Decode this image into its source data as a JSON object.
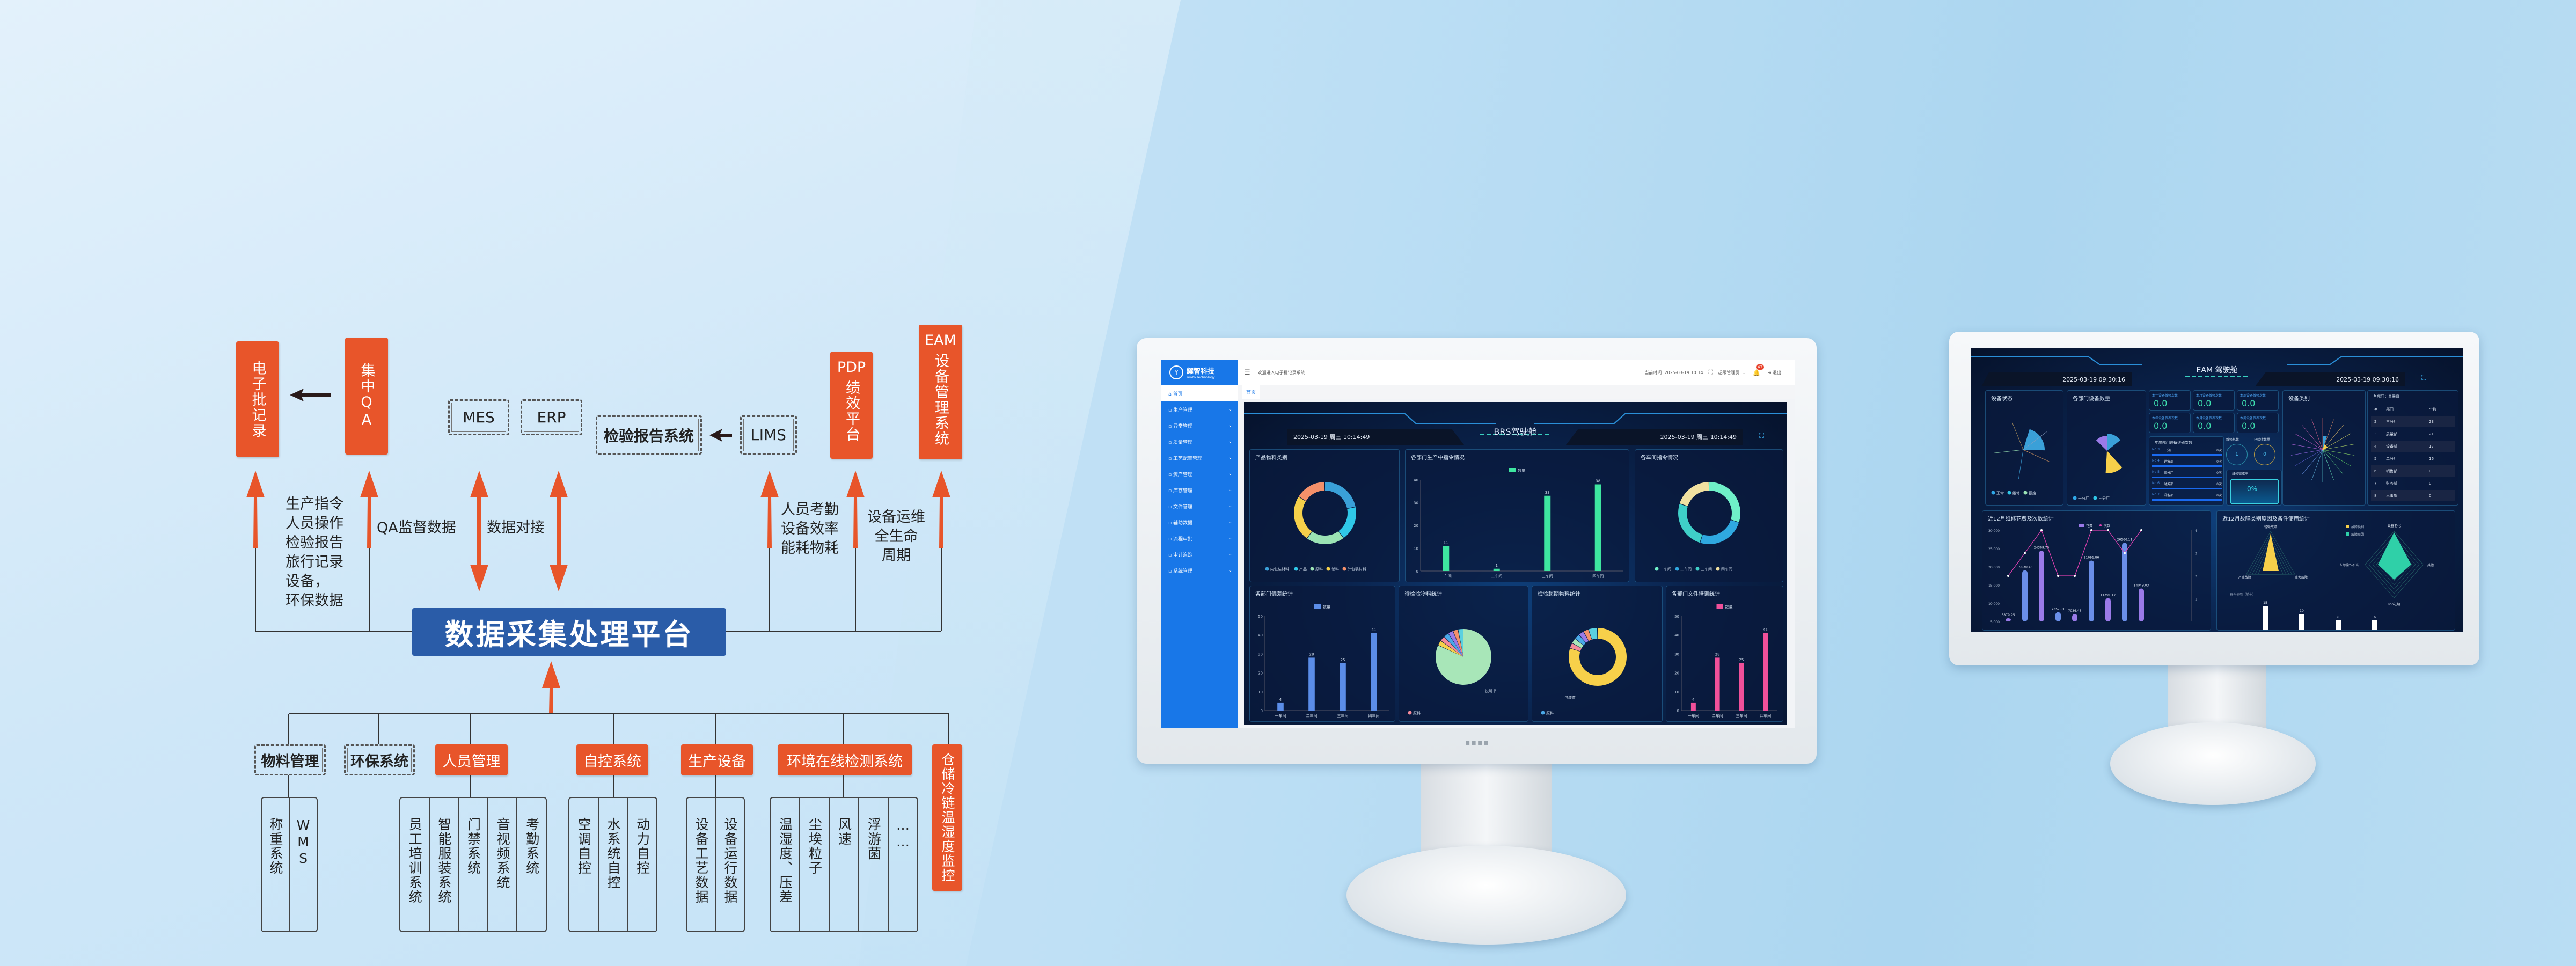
{
  "diagram": {
    "ebr": "电子批记录",
    "qa_box": "集中QA",
    "mes": "MES",
    "erp": "ERP",
    "report": "检验报告系统",
    "lims": "LIMS",
    "pdp_code": "PDP",
    "pdp_name": "绩效平台",
    "eam_code": "EAM",
    "eam_name": "设备管理系统",
    "flow_left": [
      "生产指令",
      "人员操作",
      "检验报告",
      "旅行记录",
      "设备，",
      "环保数据"
    ],
    "flow_qa": "QA监督数据",
    "flow_exchange": "数据对接",
    "flow_pdp": [
      "人员考勤",
      "设备效率",
      "能耗物耗"
    ],
    "flow_eam": [
      "设备运维",
      "全生命",
      "周期"
    ],
    "platform": "数据采集处理平台",
    "categories": [
      {
        "name": "物料管理",
        "style": "dashed",
        "subs": [
          "称重系统",
          "WMS"
        ]
      },
      {
        "name": "环保系统",
        "style": "dashed",
        "subs": []
      },
      {
        "name": "人员管理",
        "style": "orange",
        "subs": [
          "员工培训系统",
          "智能服装系统",
          "门禁系统",
          "音视频系统",
          "考勤系统"
        ]
      },
      {
        "name": "自控系统",
        "style": "orange",
        "subs": [
          "空调自控",
          "水系统自控",
          "动力自控"
        ]
      },
      {
        "name": "生产设备",
        "style": "orange",
        "subs": [
          "设备工艺数据",
          "设备运行数据"
        ]
      },
      {
        "name": "环境在线检测系统",
        "style": "orange",
        "subs": [
          "温湿度、压差",
          "尘埃粒子",
          "风速",
          "浮游菌",
          "……"
        ]
      },
      {
        "name": "仓储冷链温湿度监控",
        "style": "orange-vertical",
        "subs": []
      }
    ],
    "colors": {
      "orange": "#e8552a",
      "platform": "#2a5ca8"
    }
  },
  "monitor1": {
    "logo_name": "耀智科技",
    "logo_sub": "Yoozo Technology",
    "welcome": "欢迎进入电子批记录系统",
    "current_time": "当前时间: 2025-03-19 10:14",
    "user": "超级管理员",
    "notif_count": "43",
    "logout": "退出",
    "tab": "首页",
    "nav": [
      "首页",
      "生产管理",
      "异常管理",
      "质量管理",
      "工艺配置管理",
      "资产管理",
      "库存管理",
      "文件管理",
      "辅助数据",
      "流程审批",
      "审计追踪",
      "系统管理"
    ],
    "title": "BRS驾驶舱",
    "date_left": "2025-03-19 周三 10:14:49",
    "date_right": "2025-03-19 周三 10:14:49",
    "material": {
      "title": "产品物料类别",
      "categories": [
        "内包装材料",
        "产品",
        "原料",
        "辅料",
        "外包装材料"
      ],
      "values": [
        22,
        18,
        20,
        24,
        16
      ],
      "colors": [
        "#3aa0d8",
        "#2fc8e8",
        "#9be3b4",
        "#f5d04a",
        "#f4906a"
      ]
    },
    "orders": {
      "title": "各部门生产中指令情况",
      "legend": "数量",
      "categories": [
        "一车间",
        "二车间",
        "三车间",
        "四车间"
      ],
      "values": [
        11,
        1,
        33,
        38
      ],
      "ymax": 40,
      "ticks": [
        0,
        10,
        20,
        30,
        40
      ],
      "color": "#3ee6a0"
    },
    "workshop": {
      "title": "各车间指令情况",
      "categories": [
        "一车间",
        "二车间",
        "三车间",
        "四车间"
      ],
      "values": [
        30,
        25,
        25,
        20
      ],
      "colors": [
        "#6ff0c8",
        "#2fa8e0",
        "#3fd0c8",
        "#f0e0a0"
      ]
    },
    "deviation": {
      "title": "各部门偏差统计",
      "legend": "数量",
      "categories": [
        "一车间",
        "二车间",
        "三车间",
        "四车间"
      ],
      "values": [
        4,
        28,
        25,
        41
      ],
      "ymax": 50,
      "ticks": [
        0,
        10,
        20,
        30,
        40,
        50
      ],
      "color": "#5b8de8"
    },
    "pending": {
      "title": "待检验物料统计",
      "major_label": "说明书",
      "legend": [
        "原料"
      ]
    },
    "overdue": {
      "title": "检验超期物料统计",
      "major_label": "包装盒",
      "legend": [
        "原料"
      ]
    },
    "training": {
      "title": "各部门文件培训统计",
      "legend": "数量",
      "categories": [
        "一车间",
        "二车间",
        "三车间",
        "四车间"
      ],
      "values": [
        4,
        28,
        25,
        41
      ],
      "ymax": 50,
      "ticks": [
        0,
        10,
        20,
        30,
        40,
        50
      ],
      "color": "#f0509a"
    }
  },
  "monitor2": {
    "title": "EAM 驾驶舱",
    "date_left": "2025-03-19 09:30:16",
    "date_right": "2025-03-19 09:30:16",
    "status": {
      "title": "设备状态",
      "legend": [
        "正常",
        "维修",
        "报废"
      ]
    },
    "dept_count": {
      "title": "各部门设备数量",
      "legend": [
        "一分厂",
        "三分厂"
      ]
    },
    "tiles": [
      {
        "label": "本年设备维修次数",
        "value": "0.0"
      },
      {
        "label": "本月设备维修次数",
        "value": "0.0"
      },
      {
        "label": "本周设备维修次数",
        "value": "0.0"
      },
      {
        "label": "本年设备保养次数",
        "value": "0.0"
      },
      {
        "label": "本月设备保养次数",
        "value": "0.0"
      },
      {
        "label": "本周设备保养次数",
        "value": "0.0"
      }
    ],
    "ranking": {
      "title": "年度部门设备维修次数",
      "rows": [
        {
          "no": "No 3",
          "dept": "二分厂",
          "count": "0次"
        },
        {
          "no": "No 4",
          "dept": "销售部",
          "count": "0次"
        },
        {
          "no": "No 5",
          "dept": "三分厂",
          "count": "0次"
        },
        {
          "no": "No 6",
          "dept": "财务部",
          "count": "0次"
        },
        {
          "no": "No 7",
          "dept": "设备部",
          "count": "0次"
        }
      ]
    },
    "totals": [
      {
        "label": "维修总数",
        "value": "1"
      },
      {
        "label": "已验收数量",
        "value": "0"
      }
    ],
    "completion": {
      "title": "维修完成率",
      "value": "0%"
    },
    "category": {
      "title": "设备类别"
    },
    "meters": {
      "title": "各部门计量器具",
      "headers": [
        "#",
        "部门",
        "个数"
      ],
      "rows": [
        [
          "2",
          "三分厂",
          "23"
        ],
        [
          "3",
          "质量部",
          "21"
        ],
        [
          "4",
          "设备部",
          "17"
        ],
        [
          "5",
          "二分厂",
          "16"
        ],
        [
          "6",
          "销售部",
          "0"
        ],
        [
          "7",
          "财务部",
          "0"
        ],
        [
          "8",
          "人事部",
          "0"
        ]
      ]
    },
    "cost": {
      "title": "近12月维修花费及次数统计",
      "legend": [
        "花费",
        "次数"
      ],
      "values": [
        5879.95,
        19030.48,
        24369.75,
        7557.01,
        7036.48,
        21691.86,
        11391.17,
        26566.11,
        14049.03
      ],
      "counts": [
        2,
        3,
        4,
        2,
        2,
        4,
        4,
        3,
        4
      ],
      "yticks": [
        "5,000",
        "10,000",
        "15,000",
        "20,000",
        "25,000",
        "30,000"
      ],
      "rticks": [
        "1",
        "2",
        "3",
        "4"
      ]
    },
    "fault": {
      "title": "近12月故障类别原因及备件使用统计",
      "legend": [
        "故障类别",
        "故障原因"
      ],
      "cat_labels": [
        "轻微故障",
        "严重故障",
        "重大故障"
      ],
      "reason_labels": [
        "设备老化",
        "人为操作不当",
        "其他",
        "sop过期"
      ],
      "spare_title": "备件使用（前十）",
      "spare_values": [
        15,
        10,
        6,
        6
      ]
    }
  }
}
